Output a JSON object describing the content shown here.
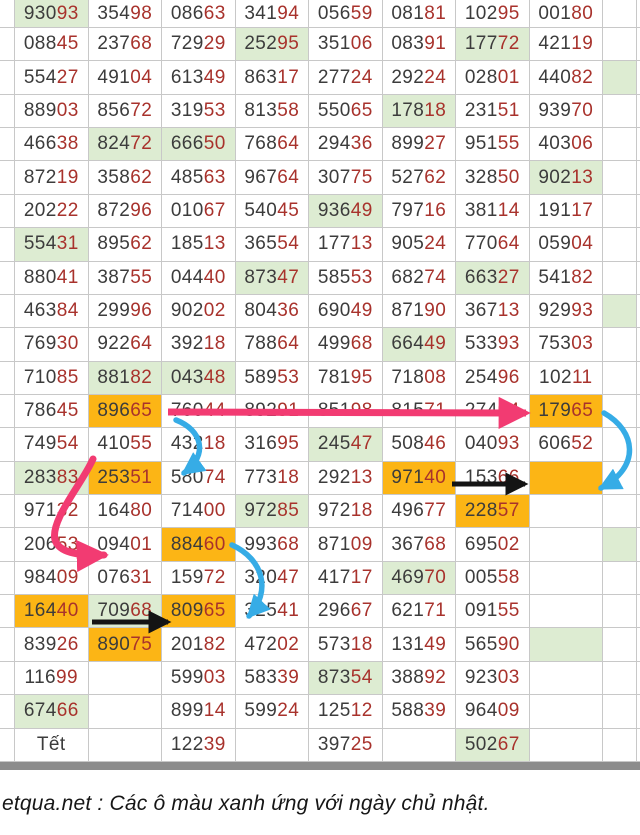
{
  "caption": "etqua.net : Các ô màu xanh ứng với ngày chủ nhật.",
  "colors": {
    "green": "#ddecd2",
    "orange": "#fcb515",
    "digit_dark": "#3c3c3c",
    "digit_red": "#a8322c",
    "grid": "#c8c8c8",
    "bar": "#8c8c8c",
    "pink": "#f23b72",
    "blue": "#36ace6",
    "black": "#141414"
  },
  "legend": {
    "green_meaning": "Các ô màu xanh ứng với ngày chủ nhật"
  },
  "arrows": [
    {
      "name": "pink-horizontal-arrow",
      "color": "pink"
    },
    {
      "name": "pink-curve-arrow",
      "color": "pink"
    },
    {
      "name": "blue-curve-arrow-1",
      "color": "blue"
    },
    {
      "name": "blue-curve-arrow-2",
      "color": "blue"
    },
    {
      "name": "blue-curve-arrow-3",
      "color": "blue"
    },
    {
      "name": "black-arrow-1",
      "color": "black"
    },
    {
      "name": "black-arrow-2",
      "color": "black"
    }
  ],
  "table": {
    "highlight_codes": {
      "g": "green-sunday",
      "o": "orange-marked",
      "": "none"
    },
    "rows": [
      {
        "cells": [
          [
            "93093",
            "g"
          ],
          [
            "35498",
            ""
          ],
          [
            "08663",
            ""
          ],
          [
            "34194",
            ""
          ],
          [
            "05659",
            ""
          ],
          [
            "08181",
            ""
          ],
          [
            "10295",
            ""
          ],
          [
            "00180",
            ""
          ]
        ],
        "edge": ""
      },
      {
        "cells": [
          [
            "08845",
            ""
          ],
          [
            "23768",
            ""
          ],
          [
            "72929",
            ""
          ],
          [
            "25295",
            "g"
          ],
          [
            "35106",
            ""
          ],
          [
            "08391",
            ""
          ],
          [
            "17772",
            "g"
          ],
          [
            "42119",
            ""
          ]
        ],
        "edge": ""
      },
      {
        "cells": [
          [
            "55427",
            ""
          ],
          [
            "49104",
            ""
          ],
          [
            "61349",
            ""
          ],
          [
            "86317",
            ""
          ],
          [
            "27724",
            ""
          ],
          [
            "29224",
            ""
          ],
          [
            "02801",
            ""
          ],
          [
            "44082",
            ""
          ]
        ],
        "edge": "g"
      },
      {
        "cells": [
          [
            "88903",
            ""
          ],
          [
            "85672",
            ""
          ],
          [
            "31953",
            ""
          ],
          [
            "81358",
            ""
          ],
          [
            "55065",
            ""
          ],
          [
            "17818",
            "g"
          ],
          [
            "23151",
            ""
          ],
          [
            "93970",
            ""
          ]
        ],
        "edge": ""
      },
      {
        "cells": [
          [
            "46638",
            ""
          ],
          [
            "82472",
            "g"
          ],
          [
            "66650",
            "g"
          ],
          [
            "76864",
            ""
          ],
          [
            "29436",
            ""
          ],
          [
            "89927",
            ""
          ],
          [
            "95155",
            ""
          ],
          [
            "40306",
            ""
          ]
        ],
        "edge": ""
      },
      {
        "cells": [
          [
            "87219",
            ""
          ],
          [
            "35862",
            ""
          ],
          [
            "48563",
            ""
          ],
          [
            "96764",
            ""
          ],
          [
            "30775",
            ""
          ],
          [
            "52762",
            ""
          ],
          [
            "32850",
            ""
          ],
          [
            "90213",
            "g"
          ]
        ],
        "edge": ""
      },
      {
        "cells": [
          [
            "20222",
            ""
          ],
          [
            "87296",
            ""
          ],
          [
            "01067",
            ""
          ],
          [
            "54045",
            ""
          ],
          [
            "93649",
            "g"
          ],
          [
            "79716",
            ""
          ],
          [
            "38114",
            ""
          ],
          [
            "19117",
            ""
          ]
        ],
        "edge": ""
      },
      {
        "cells": [
          [
            "55431",
            "g"
          ],
          [
            "89562",
            ""
          ],
          [
            "18513",
            ""
          ],
          [
            "36554",
            ""
          ],
          [
            "17713",
            ""
          ],
          [
            "90524",
            ""
          ],
          [
            "77064",
            ""
          ],
          [
            "05904",
            ""
          ]
        ],
        "edge": ""
      },
      {
        "cells": [
          [
            "88041",
            ""
          ],
          [
            "38755",
            ""
          ],
          [
            "04440",
            ""
          ],
          [
            "87347",
            "g"
          ],
          [
            "58553",
            ""
          ],
          [
            "68274",
            ""
          ],
          [
            "66327",
            "g"
          ],
          [
            "54182",
            ""
          ]
        ],
        "edge": ""
      },
      {
        "cells": [
          [
            "46384",
            ""
          ],
          [
            "29996",
            ""
          ],
          [
            "90202",
            ""
          ],
          [
            "80436",
            ""
          ],
          [
            "69049",
            ""
          ],
          [
            "87190",
            ""
          ],
          [
            "36713",
            ""
          ],
          [
            "92993",
            ""
          ]
        ],
        "edge": "g"
      },
      {
        "cells": [
          [
            "76930",
            ""
          ],
          [
            "92264",
            ""
          ],
          [
            "39218",
            ""
          ],
          [
            "78864",
            ""
          ],
          [
            "49968",
            ""
          ],
          [
            "66449",
            "g"
          ],
          [
            "53393",
            ""
          ],
          [
            "75303",
            ""
          ]
        ],
        "edge": ""
      },
      {
        "cells": [
          [
            "71085",
            ""
          ],
          [
            "88182",
            "g"
          ],
          [
            "04348",
            "g"
          ],
          [
            "58953",
            ""
          ],
          [
            "78195",
            ""
          ],
          [
            "71808",
            ""
          ],
          [
            "25496",
            ""
          ],
          [
            "10211",
            ""
          ]
        ],
        "edge": ""
      },
      {
        "cells": [
          [
            "78645",
            ""
          ],
          [
            "89665",
            "o"
          ],
          [
            "76044",
            ""
          ],
          [
            "89291",
            ""
          ],
          [
            "85198",
            ""
          ],
          [
            "81571",
            ""
          ],
          [
            "27404",
            ""
          ],
          [
            "17965",
            "o"
          ]
        ],
        "edge": ""
      },
      {
        "cells": [
          [
            "74954",
            ""
          ],
          [
            "41055",
            ""
          ],
          [
            "43218",
            ""
          ],
          [
            "31695",
            ""
          ],
          [
            "24547",
            "g"
          ],
          [
            "50846",
            ""
          ],
          [
            "04093",
            ""
          ],
          [
            "60652",
            ""
          ]
        ],
        "edge": ""
      },
      {
        "cells": [
          [
            "28383",
            "g"
          ],
          [
            "25351",
            "o"
          ],
          [
            "58074",
            ""
          ],
          [
            "77318",
            ""
          ],
          [
            "29213",
            ""
          ],
          [
            "97140",
            "o"
          ],
          [
            "15366",
            ""
          ],
          [
            "",
            "o"
          ]
        ],
        "edge": ""
      },
      {
        "cells": [
          [
            "97132",
            ""
          ],
          [
            "16480",
            ""
          ],
          [
            "71400",
            ""
          ],
          [
            "97285",
            "g"
          ],
          [
            "97218",
            ""
          ],
          [
            "49677",
            ""
          ],
          [
            "22857",
            "o"
          ],
          [
            "",
            ""
          ]
        ],
        "edge": ""
      },
      {
        "cells": [
          [
            "20653",
            ""
          ],
          [
            "09401",
            ""
          ],
          [
            "88460",
            "o"
          ],
          [
            "99368",
            ""
          ],
          [
            "87109",
            ""
          ],
          [
            "36768",
            ""
          ],
          [
            "69502",
            ""
          ],
          [
            "",
            ""
          ]
        ],
        "edge": "g"
      },
      {
        "cells": [
          [
            "98409",
            ""
          ],
          [
            "07631",
            ""
          ],
          [
            "15972",
            ""
          ],
          [
            "32047",
            ""
          ],
          [
            "41717",
            ""
          ],
          [
            "46970",
            "g"
          ],
          [
            "00558",
            ""
          ],
          [
            "",
            ""
          ]
        ],
        "edge": ""
      },
      {
        "cells": [
          [
            "16440",
            "o"
          ],
          [
            "70968",
            "g"
          ],
          [
            "80965",
            "o"
          ],
          [
            "32541",
            ""
          ],
          [
            "29667",
            ""
          ],
          [
            "62171",
            ""
          ],
          [
            "09155",
            ""
          ],
          [
            "",
            ""
          ]
        ],
        "edge": ""
      },
      {
        "cells": [
          [
            "83926",
            ""
          ],
          [
            "89075",
            "o"
          ],
          [
            "20182",
            ""
          ],
          [
            "47202",
            ""
          ],
          [
            "57318",
            ""
          ],
          [
            "13149",
            ""
          ],
          [
            "56590",
            ""
          ],
          [
            "",
            "g"
          ]
        ],
        "edge": ""
      },
      {
        "cells": [
          [
            "11699",
            ""
          ],
          [
            "",
            ""
          ],
          [
            "59903",
            ""
          ],
          [
            "58339",
            ""
          ],
          [
            "87354",
            "g"
          ],
          [
            "38892",
            ""
          ],
          [
            "92303",
            ""
          ],
          [
            "",
            ""
          ]
        ],
        "edge": ""
      },
      {
        "cells": [
          [
            "67466",
            "g"
          ],
          [
            "",
            ""
          ],
          [
            "89914",
            ""
          ],
          [
            "59924",
            ""
          ],
          [
            "12512",
            ""
          ],
          [
            "58839",
            ""
          ],
          [
            "96409",
            ""
          ],
          [
            "",
            ""
          ]
        ],
        "edge": ""
      },
      {
        "cells": [
          [
            "Tết",
            ""
          ],
          [
            "",
            ""
          ],
          [
            "12239",
            ""
          ],
          [
            "",
            ""
          ],
          [
            "39725",
            ""
          ],
          [
            "",
            ""
          ],
          [
            "50267",
            "g"
          ],
          [
            "",
            ""
          ]
        ],
        "edge": ""
      }
    ]
  }
}
